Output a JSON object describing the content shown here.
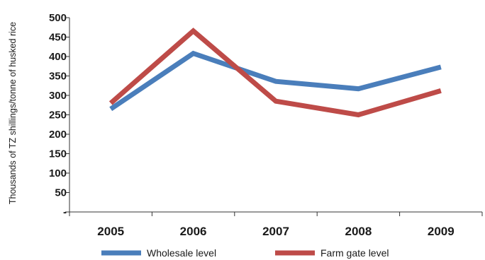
{
  "chart_data": {
    "type": "line",
    "title": "",
    "xlabel": "",
    "ylabel": "Thousands of TZ shillings/tonne of husked rice",
    "categories": [
      "2005",
      "2006",
      "2007",
      "2008",
      "2009"
    ],
    "ylim": [
      0,
      500
    ],
    "yticks": [
      0,
      50,
      100,
      150,
      200,
      250,
      300,
      350,
      400,
      450,
      500
    ],
    "ytick_labels": [
      "-",
      "50",
      "100",
      "150",
      "200",
      "250",
      "300",
      "350",
      "400",
      "450",
      "500"
    ],
    "grid": false,
    "legend_position": "bottom",
    "series": [
      {
        "name": "Wholesale level",
        "color": "#4a7ebb",
        "values": [
          265,
          408,
          336,
          317,
          373
        ]
      },
      {
        "name": "Farm gate level",
        "color": "#be4b48",
        "values": [
          280,
          466,
          285,
          250,
          312
        ]
      }
    ]
  }
}
